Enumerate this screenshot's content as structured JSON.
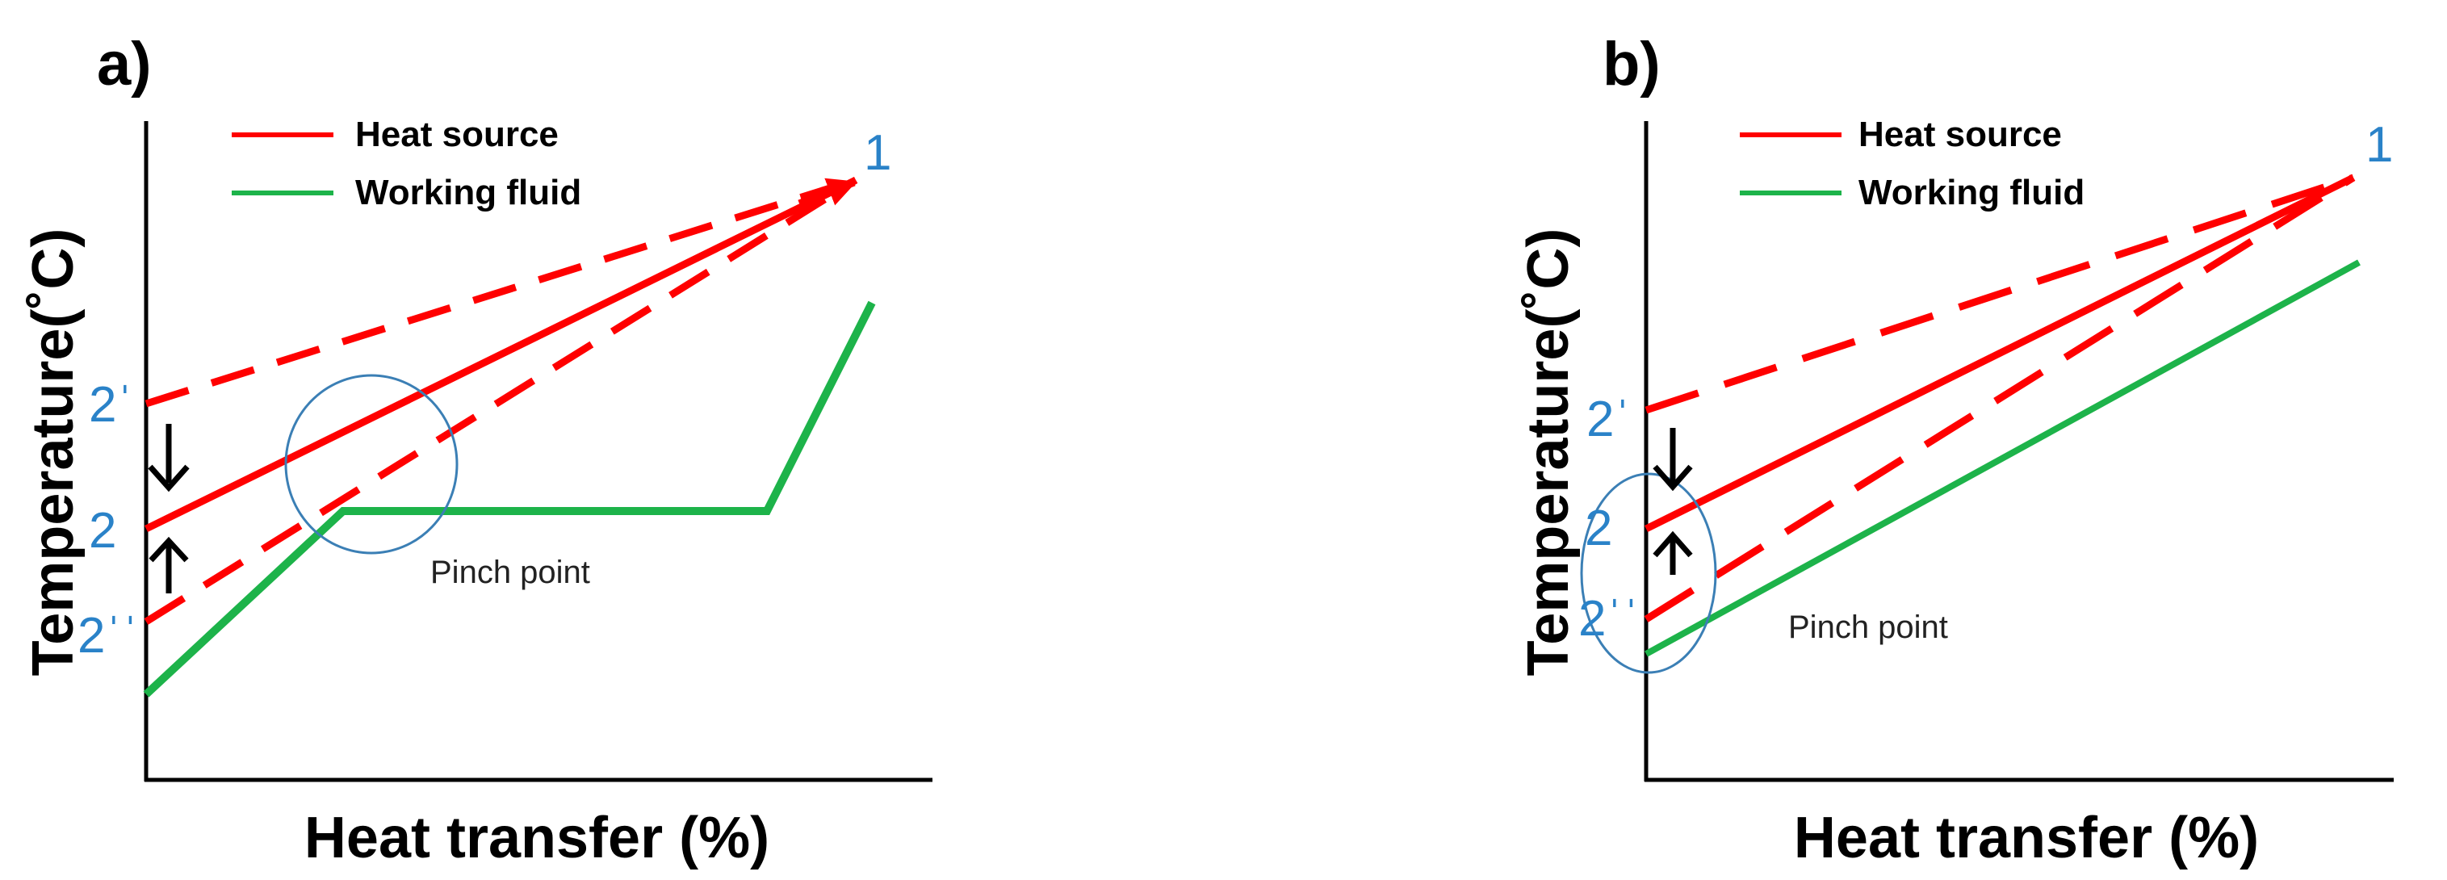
{
  "colors": {
    "heat_source": "#ff0000",
    "working_fluid": "#1db34a",
    "label_blue": "#2a82c8",
    "circle": "#3b7fb5",
    "axis": "#000000"
  },
  "panels": [
    {
      "label": "a)",
      "axis_titles": {
        "y": "Temperature(˚C)",
        "x": "Heat transfer (%)"
      },
      "legend": {
        "heat_source": "Heat source",
        "working_fluid": "Working fluid"
      },
      "point_labels": {
        "p1": "1",
        "p2prime": "2ˈ",
        "p2": "2",
        "p2dprime": "2ˈˈ"
      },
      "pinch_label": "Pinch point"
    },
    {
      "label": "b)",
      "axis_titles": {
        "y": "Temperature(˚C)",
        "x": "Heat transfer (%)"
      },
      "legend": {
        "heat_source": "Heat source",
        "working_fluid": "Working fluid"
      },
      "point_labels": {
        "p1": "1",
        "p2prime": "2ˈ",
        "p2": "2",
        "p2dprime": "2ˈˈ"
      },
      "pinch_label": "Pinch point"
    }
  ]
}
